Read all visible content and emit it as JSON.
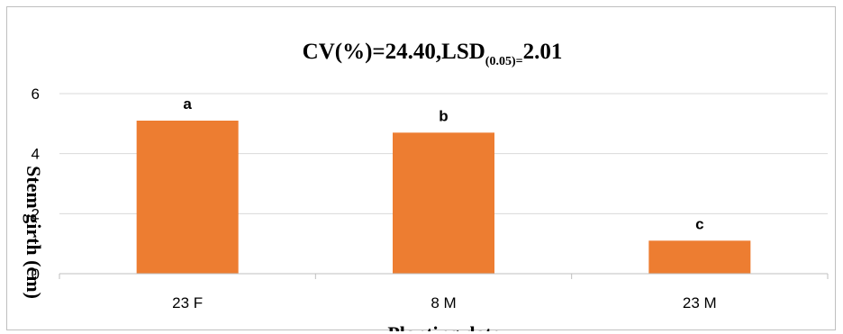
{
  "chart_data": {
    "type": "bar",
    "title_main": "CV(%)=24.40,LSD",
    "title_sub": "(0.05)=",
    "title_tail": "2.01",
    "xlabel": "Planting  date",
    "ylabel": "Stem girth (cm)",
    "categories": [
      "23 F",
      "8 M",
      "23 M"
    ],
    "values": [
      5.1,
      4.7,
      1.1
    ],
    "letters": [
      "a",
      "b",
      "c"
    ],
    "ylim": [
      0,
      6
    ],
    "yticks": [
      0,
      2,
      4,
      6
    ],
    "bar_color": "#ed7d31",
    "grid": true,
    "legend": "none"
  }
}
